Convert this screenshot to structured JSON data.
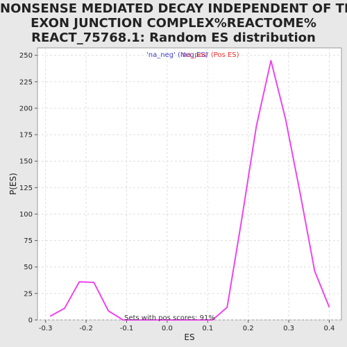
{
  "chart_data": {
    "type": "line",
    "title_lines": [
      "NONSENSE MEDIATED DECAY INDEPENDENT OF THE",
      "EXON JUNCTION COMPLEX%REACTOME%",
      "REACT_75768.1: Random ES distribution"
    ],
    "xlabel": "ES",
    "ylabel": "P(ES)",
    "xlim": [
      -0.32,
      0.43
    ],
    "ylim": [
      0,
      257
    ],
    "x_ticks": [
      -0.3,
      -0.2,
      -0.1,
      0.0,
      0.1,
      0.2,
      0.3,
      0.4
    ],
    "x_tick_labels": [
      "-0.3",
      "-0.2",
      "-0.1",
      "0.0",
      "0.1",
      "0.2",
      "0.3",
      "0.4"
    ],
    "y_ticks": [
      0,
      25,
      50,
      75,
      100,
      125,
      150,
      175,
      200,
      225,
      250
    ],
    "y_tick_labels": [
      "0",
      "25",
      "50",
      "75",
      "100",
      "125",
      "150",
      "175",
      "200",
      "225",
      "250"
    ],
    "grid": true,
    "legend_placement": "top-center",
    "series": [
      {
        "name": "'na_neg' (Neg ES)",
        "color": "#4040cc",
        "x": [],
        "y": []
      },
      {
        "name": "'na_pos' (Pos ES)",
        "color": "#ee44ee",
        "legend_color": "#ee3333",
        "x": [
          -0.289,
          -0.253,
          -0.217,
          -0.181,
          -0.145,
          -0.109,
          -0.073,
          -0.037,
          0.0,
          0.04,
          0.076,
          0.112,
          0.148,
          0.184,
          0.22,
          0.256,
          0.292,
          0.328,
          0.364,
          0.4
        ],
        "y": [
          3.5,
          11,
          36,
          35.5,
          8.5,
          0,
          0,
          0,
          0,
          0,
          0,
          0,
          12,
          95,
          183,
          245,
          190,
          120,
          46,
          12
        ]
      }
    ],
    "annotation": "Sets with pos scores: 91%"
  }
}
